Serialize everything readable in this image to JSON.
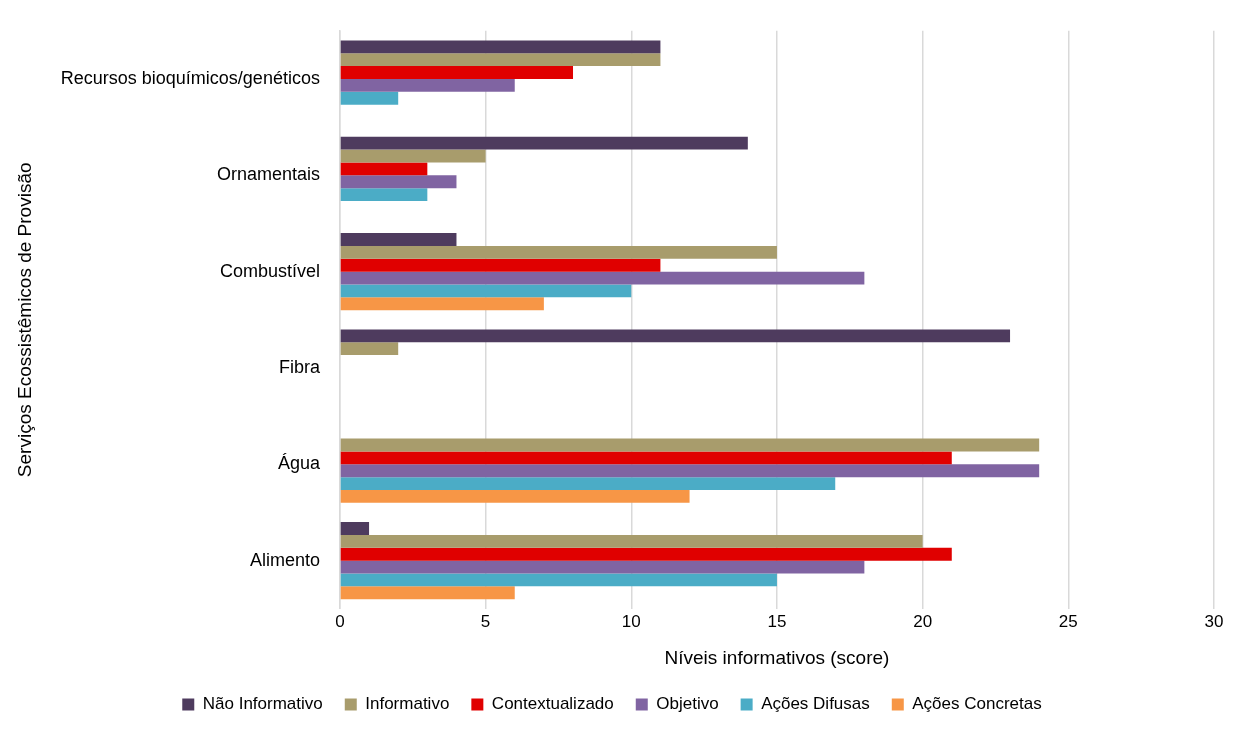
{
  "chart_data": {
    "type": "bar",
    "orientation": "horizontal",
    "xlabel": "Níveis informativos (score)",
    "ylabel": "Serviços Ecossistêmicos de Provisão",
    "categories": [
      "Recursos bioquímicos/genéticos",
      "Ornamentais",
      "Combustível",
      "Fibra",
      "Água",
      "Alimento"
    ],
    "series": [
      {
        "name": "Não Informativo",
        "color": "#4e3b5e",
        "values": [
          11,
          14,
          4,
          23,
          0,
          1
        ]
      },
      {
        "name": "Informativo",
        "color": "#a89c6c",
        "values": [
          11,
          5,
          15,
          2,
          24,
          20
        ]
      },
      {
        "name": "Contextualizado",
        "color": "#e00000",
        "values": [
          8,
          3,
          11,
          0,
          21,
          21
        ]
      },
      {
        "name": "Objetivo",
        "color": "#8064a2",
        "values": [
          6,
          4,
          18,
          0,
          24,
          18
        ]
      },
      {
        "name": "Ações Difusas",
        "color": "#4bacc6",
        "values": [
          2,
          3,
          10,
          0,
          17,
          15
        ]
      },
      {
        "name": "Ações Concretas",
        "color": "#f79646",
        "values": [
          0,
          0,
          7,
          0,
          12,
          6
        ]
      }
    ],
    "xlim": [
      0,
      30
    ],
    "xticks": [
      0,
      5,
      10,
      15,
      20,
      25,
      30
    ],
    "grid": "x",
    "legend": "bottom"
  }
}
